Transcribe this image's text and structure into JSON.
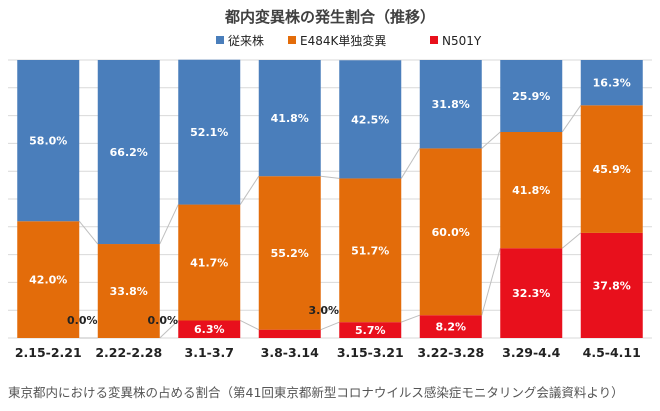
{
  "chart_data": {
    "type": "bar",
    "stacked": true,
    "percent_stacked": true,
    "title": "都内変異株の発生割合（推移）",
    "categories": [
      "2.15-2.21",
      "2.22-2.28",
      "3.1-3.7",
      "3.8-3.14",
      "3.15-3.21",
      "3.22-3.28",
      "3.29-4.4",
      "4.5-4.11"
    ],
    "series": [
      {
        "name": "N501Y",
        "color": "#e8101c",
        "values": [
          0.0,
          0.0,
          6.3,
          3.0,
          5.7,
          8.2,
          32.3,
          37.8
        ],
        "labels": [
          "0.0%",
          "0.0%",
          "6.3%",
          "3.0%",
          "5.7%",
          "8.2%",
          "32.3%",
          "37.8%"
        ]
      },
      {
        "name": "E484K単独変異",
        "color": "#e36c0a",
        "values": [
          42.0,
          33.8,
          41.7,
          55.2,
          51.7,
          60.0,
          41.8,
          45.9
        ],
        "labels": [
          "42.0%",
          "33.8%",
          "41.7%",
          "55.2%",
          "51.7%",
          "60.0%",
          "41.8%",
          "45.9%"
        ]
      },
      {
        "name": "従来株",
        "color": "#4a7ebb",
        "values": [
          58.0,
          66.2,
          52.1,
          41.8,
          42.5,
          31.8,
          25.9,
          16.3
        ],
        "labels": [
          "58.0%",
          "66.2%",
          "52.1%",
          "41.8%",
          "42.5%",
          "31.8%",
          "25.9%",
          "16.3%"
        ]
      }
    ],
    "legend": [
      "従来株",
      "E484K単独変異",
      "N501Y"
    ],
    "legend_position": "top",
    "ylim": [
      0,
      100
    ],
    "grid": true,
    "series_lines": true,
    "footnote": "東京都内における変異株の占める割合（第41回東京都新型コロナウイルス感染症モニタリング会議資料より）"
  }
}
